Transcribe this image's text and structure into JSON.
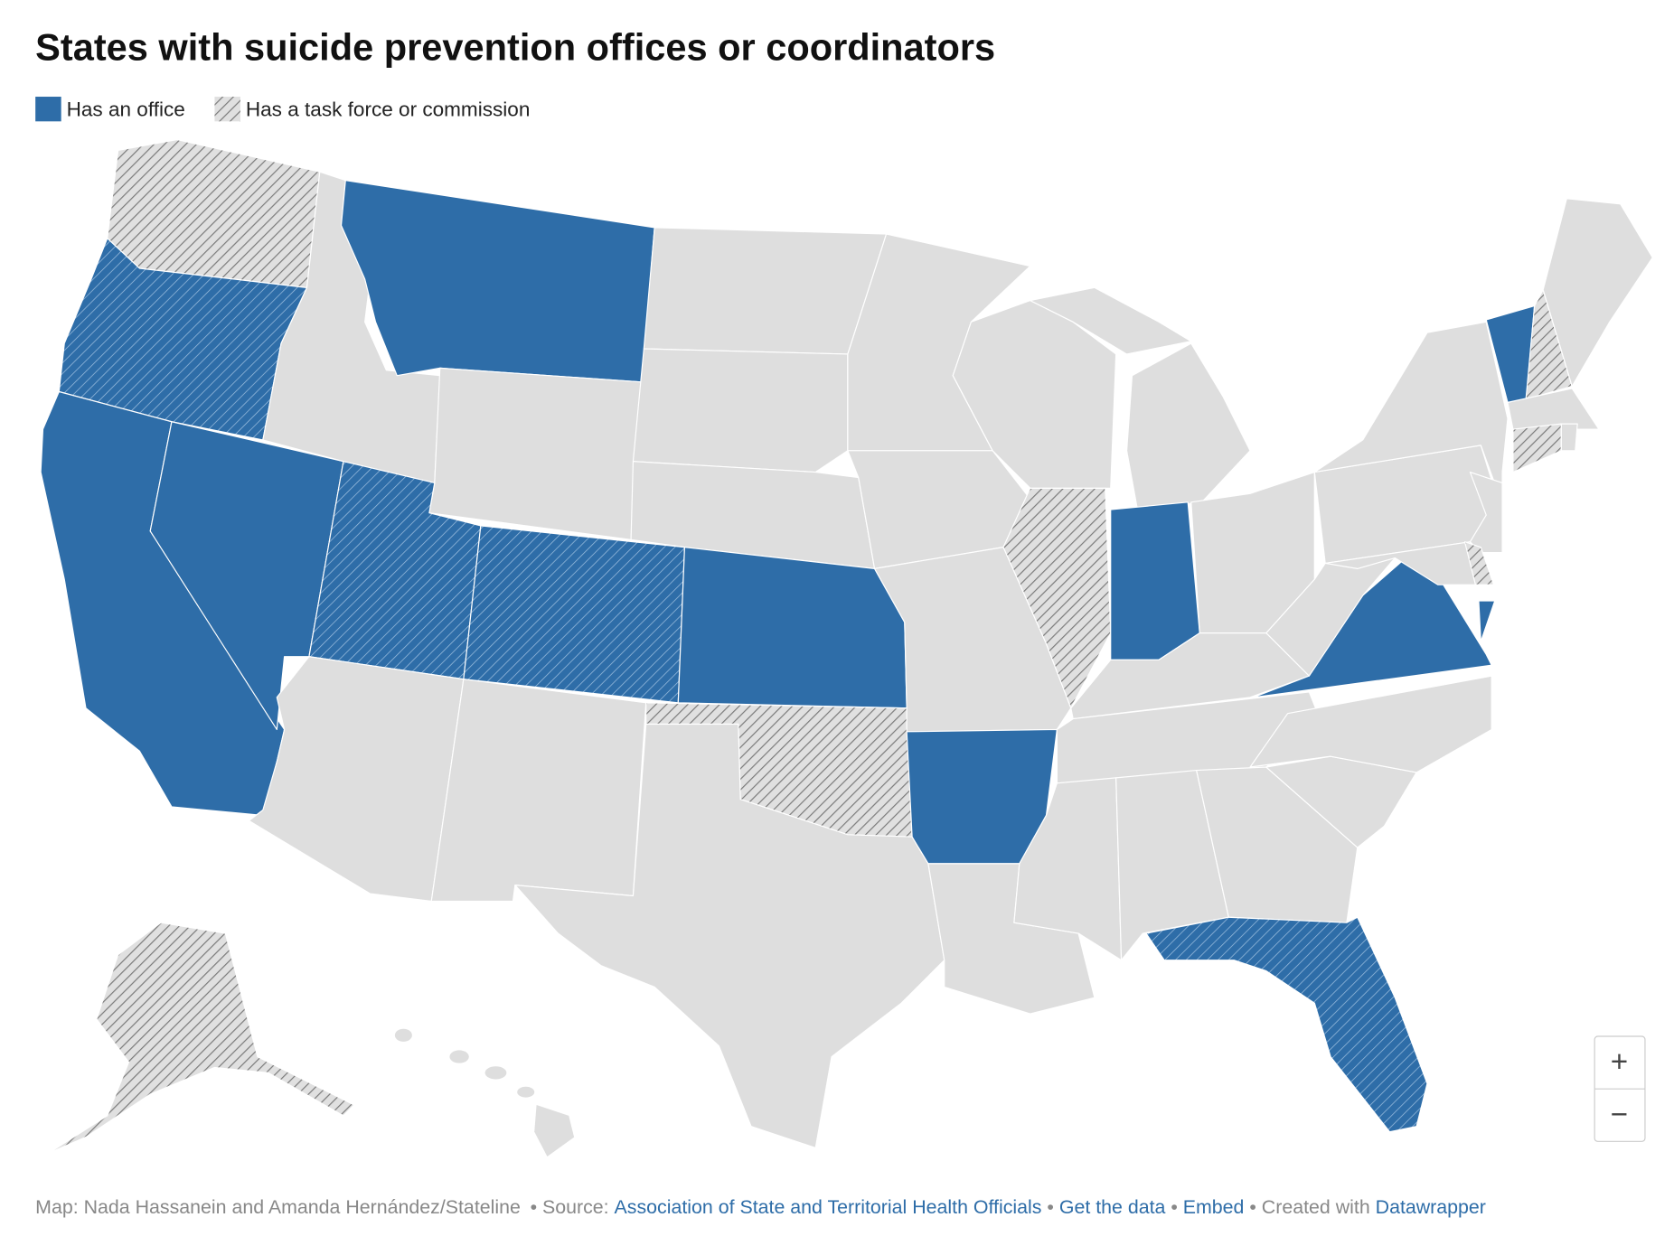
{
  "header": {
    "title": "States with suicide prevention offices or coordinators"
  },
  "legend": [
    {
      "label": "Has an office",
      "color": "#2e6da8"
    },
    {
      "label": "Has a task force or commission",
      "color": "#8a8a8a"
    }
  ],
  "controls": {
    "zoom_in": "+",
    "zoom_out": "−"
  },
  "footer": {
    "credit": "Map: Nada Hassanein and Amanda Hernández/Stateline",
    "source_label": "• Source:",
    "source": "Association of State and Territorial Health Officials",
    "sep1": "•",
    "get_data": "Get the data",
    "sep2": "•",
    "embed": "Embed",
    "created_label": "• Created with",
    "created": "Datawrapper"
  }
}
